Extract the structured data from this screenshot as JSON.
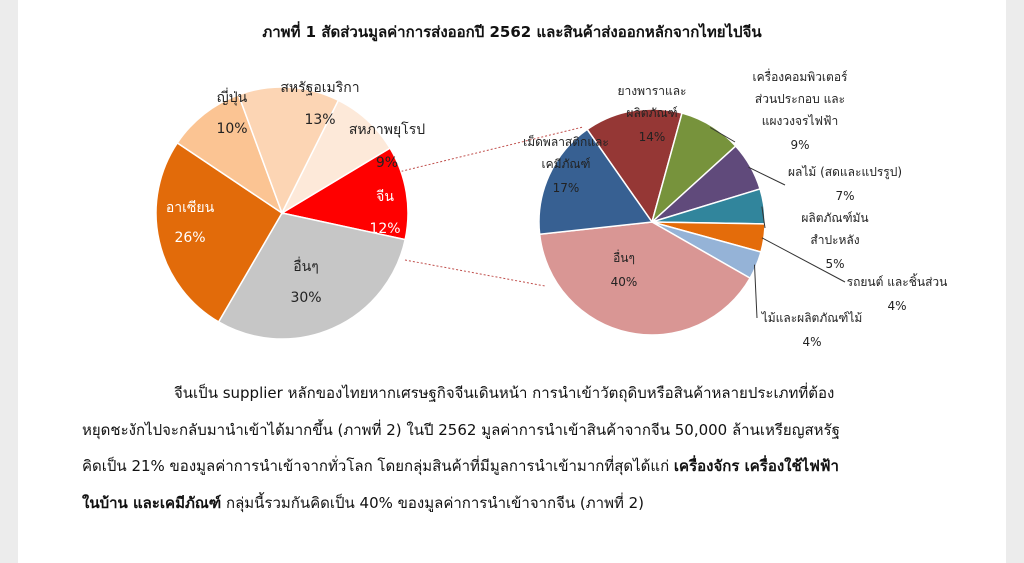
{
  "title": "ภาพที่ 1 สัดส่วนมูลค่าการส่งออกปี 2562 และสินค้าส่งออกหลักจากไทยไปจีน",
  "chart_data": [
    {
      "type": "pie",
      "title": "",
      "labels": [
        "จีน",
        "อื่นๆ",
        "อาเซียน",
        "ญี่ปุ่น",
        "สหรัฐอเมริกา",
        "สหภาพยุโรป"
      ],
      "values": [
        12,
        30,
        26,
        10,
        13,
        9
      ],
      "value_labels": [
        "12%",
        "30%",
        "26%",
        "10%",
        "13%",
        "9%"
      ],
      "colors": [
        "#ff0000",
        "#c6c6c6",
        "#e26b0a",
        "#fbc493",
        "#fcd5b4",
        "#fde9d9"
      ]
    },
    {
      "type": "pie",
      "title": "",
      "labels": [
        "ยางพาราและผลิตภัณฑ์",
        "เครื่องคอมพิวเตอร์ ส่วนประกอบ และแผงวงจรไฟฟ้า",
        "ผลไม้ (สดและแปรรูป)",
        "ผลิตภัณฑ์มันสำปะหลัง",
        "รถยนต์ และชิ้นส่วน",
        "ไม้และผลิตภัณฑ์ไม้",
        "อื่นๆ",
        "เม็ดพลาสติกและเคมีภัณฑ์"
      ],
      "label_lines": [
        [
          "ยางพาราและ",
          "ผลิตภัณฑ์"
        ],
        [
          "เครื่องคอมพิวเตอร์",
          "ส่วนประกอบ และ",
          "แผงวงจรไฟฟ้า"
        ],
        [
          "ผลไม้ (สดและแปรรูป)"
        ],
        [
          "ผลิตภัณฑ์มัน",
          "สำปะหลัง"
        ],
        [
          "รถยนต์ และชิ้นส่วน"
        ],
        [
          "ไม้และผลิตภัณฑ์ไม้"
        ],
        [
          "อื่นๆ"
        ],
        [
          "เม็ดพลาสติกและ",
          "เคมีภัณฑ์"
        ]
      ],
      "values": [
        14,
        9,
        7,
        5,
        4,
        4,
        40,
        17
      ],
      "value_labels": [
        "14%",
        "9%",
        "7%",
        "5%",
        "4%",
        "4%",
        "40%",
        "17%"
      ],
      "colors": [
        "#953735",
        "#77933c",
        "#604a7b",
        "#31859c",
        "#e46c0a",
        "#95b3d7",
        "#d99694",
        "#376092"
      ]
    }
  ],
  "paragraph": {
    "line1": "จีนเป็น supplier หลักของไทยหากเศรษฐกิจจีนเดินหน้า การนำเข้าวัตถุดิบหรือสินค้าหลายประเภทที่ต้อง",
    "line2": "หยุดชะงักไปจะกลับมานำเข้าได้มากขึ้น  (ภาพที่ 2) ในปี 2562 มูลค่าการนำเข้าสินค้าจากจีน 50,000 ล้านเหรียญสหรัฐ",
    "line3_normal": "คิดเป็น 21% ของมูลค่าการนำเข้าจากทั่วโลก โดยกลุ่มสินค้าที่มีมูลการนำเข้ามากที่สุดได้แก่ ",
    "line3_bold": "เครื่องจักร เครื่องใช้ไฟฟ้า",
    "line4_bold": "ในบ้าน และเคมีภัณฑ์",
    "line4_normal": " กลุ่มนี้รวมกันคิดเป็น 40% ของมูลค่าการนำเข้าจากจีน (ภาพที่ 2)"
  }
}
